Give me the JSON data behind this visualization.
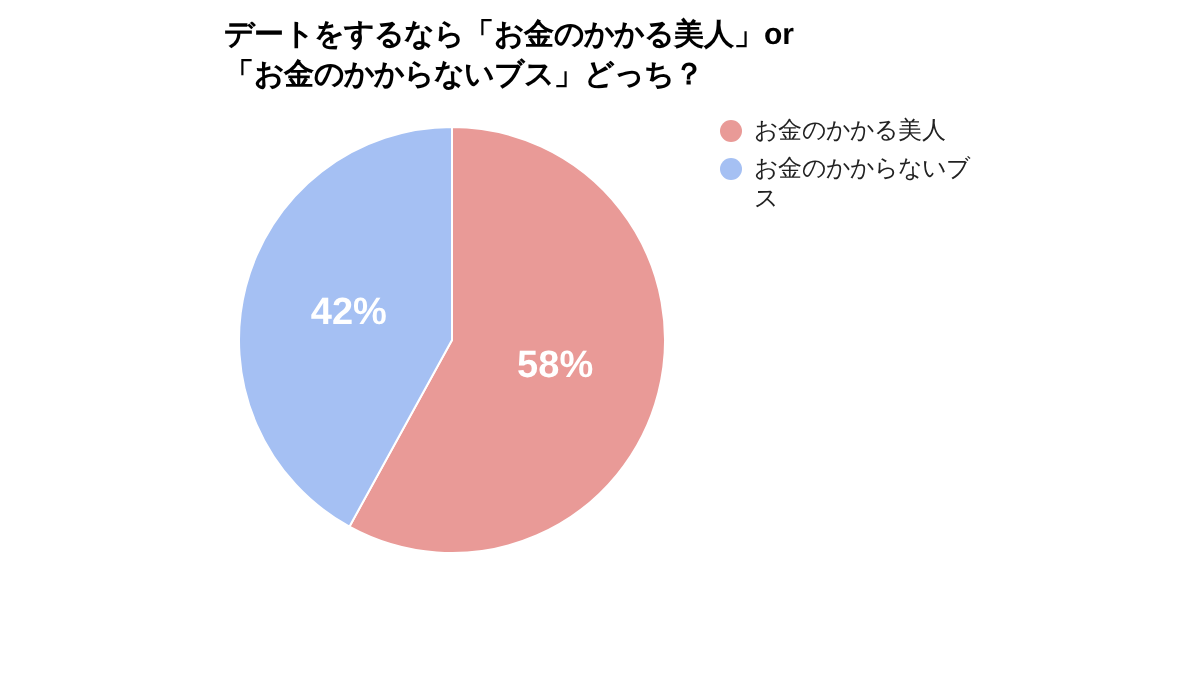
{
  "chart_data": {
    "type": "pie",
    "title": "デートをするなら「お金のかかる美人」or「お金のかからないブス」どっち？",
    "categories": [
      "お金のかかる美人",
      "お金のかからないブス"
    ],
    "values": [
      58,
      42
    ],
    "colors": [
      "#e99a97",
      "#a5c0f3"
    ],
    "value_labels": [
      "58%",
      "42%"
    ],
    "legend": "top right"
  }
}
